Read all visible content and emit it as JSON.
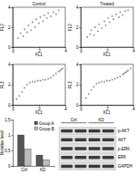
{
  "chart_data": [
    {
      "type": "scatter",
      "title": "Control",
      "xlabel": "FL1",
      "ylabel": "FL2",
      "color": "#888888",
      "marker": "circle",
      "xlim": [
        0,
        4
      ],
      "ylim": [
        0,
        4
      ],
      "xticks": [
        0,
        2,
        4
      ],
      "yticks": [
        0,
        2,
        4
      ],
      "x": [
        0.4,
        0.6,
        0.8,
        0.9,
        1.1,
        1.2,
        1.4,
        1.5,
        1.7,
        1.8,
        2.0,
        2.1,
        2.3,
        2.4,
        2.6,
        2.7,
        2.9,
        3.1,
        3.3,
        3.5
      ],
      "values": [
        0.9,
        1.4,
        1.1,
        1.8,
        1.5,
        2.2,
        1.7,
        2.5,
        2.0,
        2.8,
        2.4,
        3.0,
        2.6,
        3.2,
        2.9,
        3.4,
        3.1,
        3.5,
        3.3,
        3.7
      ]
    },
    {
      "type": "scatter",
      "title": "Treated",
      "xlabel": "FL1",
      "ylabel": "FL2",
      "color": "#888888",
      "marker": "circle",
      "xlim": [
        0,
        4
      ],
      "ylim": [
        0,
        4
      ],
      "xticks": [
        0,
        2,
        4
      ],
      "yticks": [
        0,
        2,
        4
      ],
      "x": [
        0.5,
        0.7,
        0.8,
        1.0,
        1.1,
        1.3,
        1.4,
        1.6,
        1.8,
        1.9,
        2.1,
        2.2,
        2.4,
        2.5,
        2.7,
        2.9,
        3.0,
        3.2,
        3.4,
        3.6
      ],
      "values": [
        1.0,
        1.3,
        1.7,
        1.2,
        2.0,
        1.6,
        2.3,
        1.9,
        2.6,
        2.2,
        2.9,
        2.5,
        3.1,
        2.8,
        3.3,
        3.0,
        3.5,
        3.2,
        3.6,
        3.7
      ]
    },
    {
      "type": "scatter",
      "xlabel": "FL1",
      "ylabel": "FL2",
      "color": "#888888",
      "marker": "circle",
      "xlim": [
        0,
        4
      ],
      "ylim": [
        0,
        4
      ],
      "xticks": [
        0,
        2,
        4
      ],
      "yticks": [
        0,
        2,
        4
      ],
      "x": [
        0.3,
        0.5,
        0.7,
        0.9,
        1.1,
        1.3,
        1.5,
        1.7,
        1.9,
        2.1,
        2.3,
        2.5,
        2.7,
        2.9,
        3.1,
        3.3,
        3.5,
        3.6,
        3.7,
        3.8
      ],
      "values": [
        0.6,
        0.9,
        1.3,
        1.7,
        2.0,
        2.2,
        2.3,
        2.3,
        2.4,
        2.4,
        2.5,
        2.5,
        2.6,
        2.7,
        2.9,
        3.1,
        3.3,
        3.4,
        3.5,
        3.6
      ]
    },
    {
      "type": "scatter",
      "xlabel": "FL1",
      "ylabel": "FL2",
      "color": "#888888",
      "marker": "circle",
      "xlim": [
        0,
        4
      ],
      "ylim": [
        0,
        4
      ],
      "xticks": [
        0,
        2,
        4
      ],
      "yticks": [
        0,
        2,
        4
      ],
      "x": [
        0.4,
        0.6,
        0.8,
        1.0,
        1.2,
        1.4,
        1.6,
        1.8,
        2.0,
        2.2,
        2.4,
        2.6,
        2.8,
        3.0,
        3.2,
        3.3,
        3.4,
        3.5,
        3.6,
        3.8
      ],
      "values": [
        0.7,
        1.1,
        1.5,
        1.8,
        2.1,
        2.2,
        2.3,
        2.3,
        2.4,
        2.4,
        2.5,
        2.6,
        2.7,
        2.8,
        3.0,
        3.1,
        3.2,
        3.3,
        3.4,
        3.6
      ]
    },
    {
      "type": "bar",
      "ylabel": "Relative level",
      "categories": [
        "Ctrl",
        "KD"
      ],
      "series": [
        {
          "name": "Group A",
          "color": "#555555",
          "values": [
            1.0,
            0.35
          ]
        },
        {
          "name": "Group B",
          "color": "#bbbbbb",
          "values": [
            0.55,
            0.2
          ]
        }
      ],
      "ylim": [
        0,
        1.5
      ],
      "yticks": [
        0,
        0.5,
        1,
        1.5
      ],
      "legend": "top-right"
    }
  ],
  "blot": {
    "groups": [
      {
        "label": "Ctrl",
        "lanes": 2
      },
      {
        "label": "KD",
        "lanes": 2
      }
    ],
    "rows": [
      "p-AKT",
      "AKT",
      "p-ERK",
      "ERK",
      "GAPDH"
    ]
  }
}
